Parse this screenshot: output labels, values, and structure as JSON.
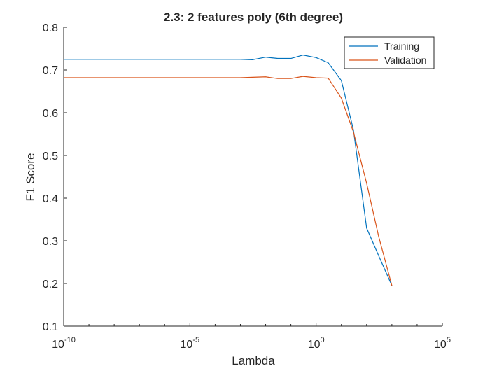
{
  "chart_data": {
    "type": "line",
    "title": "2.3: 2 features poly (6th degree)",
    "xlabel": "Lambda",
    "ylabel": "F1 Score",
    "xscale": "log",
    "xlim": [
      1e-10,
      100000
    ],
    "ylim": [
      0.1,
      0.8
    ],
    "xticks": [
      {
        "value": 1e-10,
        "base": "10",
        "exp": "-10"
      },
      {
        "value": 1e-05,
        "base": "10",
        "exp": "-5"
      },
      {
        "value": 1,
        "base": "10",
        "exp": "0"
      },
      {
        "value": 100000,
        "base": "10",
        "exp": "5"
      }
    ],
    "yticks": [
      "0.1",
      "0.2",
      "0.3",
      "0.4",
      "0.5",
      "0.6",
      "0.7",
      "0.8"
    ],
    "grid": false,
    "legend_position": "top-right",
    "series": [
      {
        "name": "Training",
        "color": "#0072BD",
        "x": [
          1e-10,
          3e-10,
          1e-09,
          3e-09,
          1e-08,
          3e-08,
          1e-07,
          3e-07,
          1e-06,
          3e-06,
          1e-05,
          3e-05,
          0.0001,
          0.0003,
          0.001,
          0.003,
          0.01,
          0.03,
          0.1,
          0.3,
          1,
          3,
          10,
          30,
          100,
          300,
          1000
        ],
        "y": [
          0.725,
          0.725,
          0.725,
          0.725,
          0.725,
          0.725,
          0.725,
          0.725,
          0.725,
          0.725,
          0.725,
          0.725,
          0.725,
          0.725,
          0.725,
          0.724,
          0.73,
          0.727,
          0.727,
          0.735,
          0.729,
          0.717,
          0.675,
          0.56,
          0.33,
          0.265,
          0.195
        ]
      },
      {
        "name": "Validation",
        "color": "#D95319",
        "x": [
          1e-10,
          3e-10,
          1e-09,
          3e-09,
          1e-08,
          3e-08,
          1e-07,
          3e-07,
          1e-06,
          3e-06,
          1e-05,
          3e-05,
          0.0001,
          0.0003,
          0.001,
          0.003,
          0.01,
          0.03,
          0.1,
          0.3,
          1,
          3,
          10,
          30,
          100,
          300,
          1000
        ],
        "y": [
          0.682,
          0.682,
          0.682,
          0.682,
          0.682,
          0.682,
          0.682,
          0.682,
          0.682,
          0.682,
          0.682,
          0.682,
          0.682,
          0.682,
          0.682,
          0.683,
          0.684,
          0.68,
          0.68,
          0.685,
          0.682,
          0.681,
          0.634,
          0.555,
          0.435,
          0.31,
          0.195
        ]
      }
    ]
  }
}
